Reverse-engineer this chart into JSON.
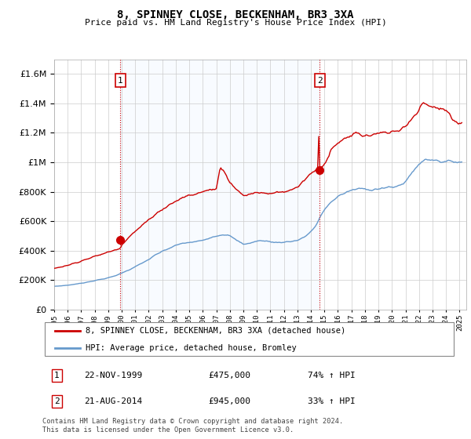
{
  "title": "8, SPINNEY CLOSE, BECKENHAM, BR3 3XA",
  "subtitle": "Price paid vs. HM Land Registry's House Price Index (HPI)",
  "legend_line1": "8, SPINNEY CLOSE, BECKENHAM, BR3 3XA (detached house)",
  "legend_line2": "HPI: Average price, detached house, Bromley",
  "footnote": "Contains HM Land Registry data © Crown copyright and database right 2024.\nThis data is licensed under the Open Government Licence v3.0.",
  "sale1_label": "1",
  "sale1_date": "22-NOV-1999",
  "sale1_price": "£475,000",
  "sale1_hpi": "74% ↑ HPI",
  "sale2_label": "2",
  "sale2_date": "21-AUG-2014",
  "sale2_price": "£945,000",
  "sale2_hpi": "33% ↑ HPI",
  "sale1_year": 1999.9,
  "sale1_value": 475000,
  "sale2_year": 2014.65,
  "sale2_value": 945000,
  "red_color": "#cc0000",
  "blue_color": "#6699cc",
  "dashed_color": "#cc0000",
  "shade_color": "#ddeeff",
  "ylim_min": 0,
  "ylim_max": 1700000,
  "xlim_min": 1995.0,
  "xlim_max": 2025.5,
  "bg_color": "#f0f4fa",
  "plot_bg": "#ffffff"
}
